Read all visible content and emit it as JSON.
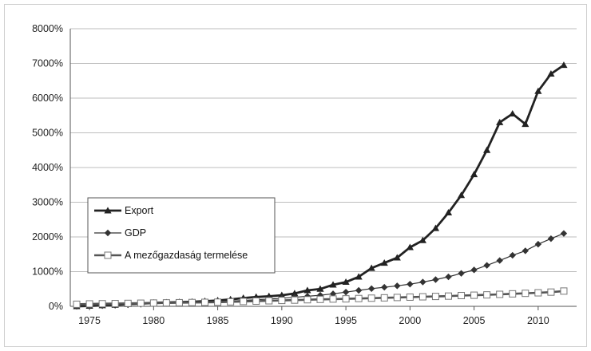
{
  "chart_data": {
    "type": "line",
    "title": "",
    "xlabel": "",
    "ylabel": "",
    "x": [
      1974,
      1975,
      1976,
      1977,
      1978,
      1979,
      1980,
      1981,
      1982,
      1983,
      1984,
      1985,
      1986,
      1987,
      1988,
      1989,
      1990,
      1991,
      1992,
      1993,
      1994,
      1995,
      1996,
      1997,
      1998,
      1999,
      2000,
      2001,
      2002,
      2003,
      2004,
      2005,
      2006,
      2007,
      2008,
      2009,
      2010,
      2011,
      2012
    ],
    "xlim": [
      1973.5,
      2013
    ],
    "ylim": [
      0,
      8000
    ],
    "x_ticks": [
      "1975",
      "1980",
      "1985",
      "1990",
      "1995",
      "2000",
      "2005",
      "2010"
    ],
    "x_tick_values": [
      1975,
      1980,
      1985,
      1990,
      1995,
      2000,
      2005,
      2010
    ],
    "y_ticks": [
      "0%",
      "1000%",
      "2000%",
      "3000%",
      "4000%",
      "5000%",
      "6000%",
      "7000%",
      "8000%"
    ],
    "y_tick_values": [
      0,
      1000,
      2000,
      3000,
      4000,
      5000,
      6000,
      7000,
      8000
    ],
    "grid": "horizontal",
    "legend_position": "bottom-left",
    "series": [
      {
        "name": "Export",
        "color": "#222222",
        "marker": "triangle",
        "values": [
          0,
          10,
          25,
          40,
          60,
          80,
          100,
          110,
          120,
          130,
          150,
          170,
          200,
          240,
          270,
          290,
          320,
          370,
          460,
          500,
          620,
          700,
          850,
          1100,
          1250,
          1400,
          1700,
          1900,
          2250,
          2700,
          3200,
          3800,
          4500,
          5300,
          5550,
          5250,
          6200,
          6700,
          6950
        ]
      },
      {
        "name": "GDP",
        "color": "#333333",
        "marker": "diamond",
        "values": [
          0,
          10,
          20,
          30,
          45,
          60,
          75,
          85,
          95,
          105,
          115,
          130,
          150,
          170,
          190,
          210,
          235,
          260,
          290,
          320,
          360,
          410,
          460,
          510,
          550,
          590,
          640,
          700,
          770,
          850,
          950,
          1050,
          1180,
          1320,
          1470,
          1600,
          1790,
          1950,
          2100
        ]
      },
      {
        "name": "A mezőgazdaság termelése",
        "color": "#555555",
        "marker": "square-open",
        "values": [
          60,
          70,
          75,
          80,
          85,
          90,
          95,
          100,
          105,
          110,
          115,
          120,
          130,
          140,
          150,
          160,
          170,
          180,
          190,
          200,
          210,
          215,
          225,
          235,
          245,
          255,
          265,
          275,
          285,
          295,
          310,
          320,
          330,
          345,
          360,
          375,
          390,
          410,
          440
        ]
      }
    ]
  }
}
